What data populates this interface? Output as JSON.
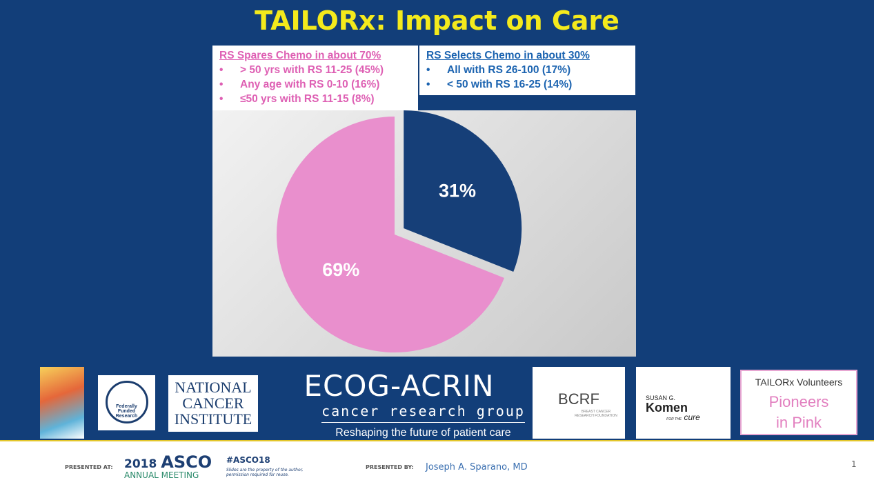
{
  "chart_data": {
    "type": "pie",
    "title": "TAILORx: Impact on Care",
    "values": [
      31,
      69
    ],
    "value_labels": [
      "31%",
      "69%"
    ],
    "colors": [
      "#163f78",
      "#e98fcd"
    ],
    "annotations": [
      {
        "heading": "RS Spares Chemo in about 70%",
        "color": "#de5fb3",
        "items": [
          "> 50 yrs with RS 11-25 (45%)",
          "Any age with RS 0-10 (16%)",
          "≤50 yrs with  RS 11-15 (8%)"
        ]
      },
      {
        "heading": "RS Selects Chemo in about 30%",
        "color": "#1b63b0",
        "items": [
          "All with RS 26-100 (17%)",
          "< 50 with RS 16-25 (14%)"
        ]
      }
    ]
  },
  "logos": {
    "nci": "NATIONAL CANCER INSTITUTE",
    "federal": "Federally Funded Research",
    "ecog": "ECOG-ACRIN",
    "ecog_sub": "cancer research group",
    "ecog_tag": "Reshaping the future of patient care",
    "bcrf": "BCRF",
    "bcrf_sub": "BREAST CANCER RESEARCH FOUNDATION",
    "komen_top": "SUSAN G.",
    "komen": "Komen",
    "komen_for": "FOR THE",
    "komen_cure": "cure",
    "tailorx": "TAILORx Volunteers",
    "pink": "Pioneers in Pink"
  },
  "footer": {
    "presented_at": "PRESENTED AT:",
    "asco_year": "2018",
    "asco": "ASCO",
    "asco_meeting": "ANNUAL MEETING",
    "hashtag": "#ASCO18",
    "notice": "Slides are the property of the author, permission required for reuse.",
    "presented_by": "PRESENTED BY:",
    "presenter": "Joseph A. Sparano, MD",
    "page": "1"
  }
}
